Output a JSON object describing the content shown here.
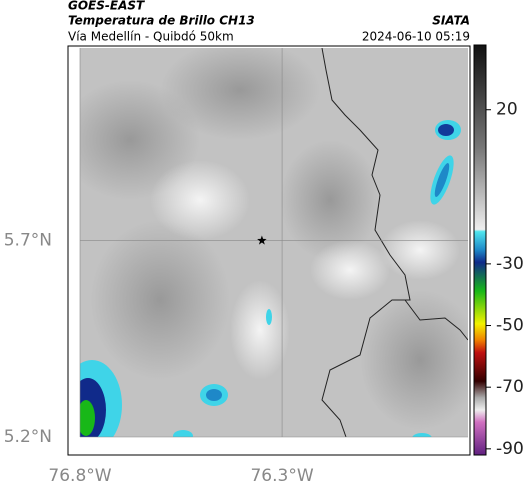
{
  "header": {
    "source": "GOES-EAST",
    "product": "Temperatura de Brillo CH13",
    "org": "SIATA",
    "route": "Vía Medellín - Quibdó 50km",
    "timestamp": "2024-06-10 05:19"
  },
  "map": {
    "xlim": [
      -76.8,
      -75.84
    ],
    "ylim": [
      5.2,
      6.19
    ],
    "xticks": [
      {
        "value": -76.8,
        "label": "76.8°W"
      },
      {
        "value": -76.3,
        "label": "76.3°W"
      }
    ],
    "yticks": [
      {
        "value": 5.7,
        "label": "5.7°N"
      },
      {
        "value": 5.2,
        "label": "5.2°N"
      }
    ],
    "grid": true,
    "marker": {
      "lon": -76.35,
      "lat": 5.7
    }
  },
  "colorbar": {
    "lim": [
      -92,
      41
    ],
    "ticks": [
      20,
      -30,
      -50,
      -70,
      -90
    ]
  }
}
